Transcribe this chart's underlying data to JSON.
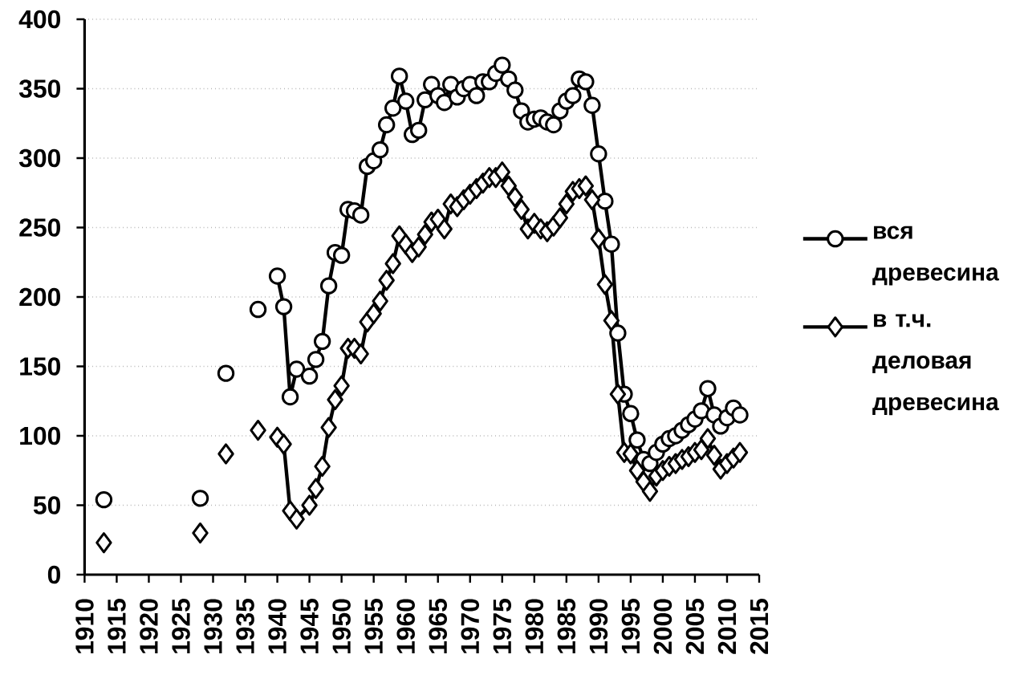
{
  "chart_data": {
    "type": "line",
    "x": [
      1913,
      1914,
      1928,
      1929,
      1932,
      1933,
      1937,
      1938,
      1940,
      1941,
      1942,
      1943,
      1945,
      1946,
      1947,
      1948,
      1949,
      1950,
      1951,
      1952,
      1953,
      1954,
      1955,
      1956,
      1957,
      1958,
      1959,
      1960,
      1961,
      1962,
      1963,
      1964,
      1965,
      1966,
      1967,
      1968,
      1969,
      1970,
      1971,
      1972,
      1973,
      1974,
      1975,
      1976,
      1977,
      1978,
      1979,
      1980,
      1981,
      1982,
      1983,
      1984,
      1985,
      1986,
      1987,
      1988,
      1989,
      1990,
      1991,
      1992,
      1993,
      1994,
      1995,
      1996,
      1997,
      1998,
      1999,
      2000,
      2001,
      2002,
      2003,
      2004,
      2005,
      2006,
      2007,
      2008,
      2009,
      2010,
      2011,
      2012
    ],
    "series": [
      {
        "name": "вся древесина",
        "color": "#000000",
        "marker": "circle",
        "values": [
          54,
          null,
          55,
          null,
          145,
          null,
          191,
          null,
          215,
          193,
          128,
          148,
          143,
          155,
          168,
          208,
          232,
          230,
          263,
          262,
          259,
          294,
          298,
          306,
          324,
          336,
          359,
          341,
          317,
          320,
          342,
          353,
          345,
          340,
          353,
          344,
          350,
          353,
          345,
          355,
          355,
          361,
          367,
          357,
          349,
          334,
          326,
          328,
          329,
          326,
          324,
          334,
          341,
          345,
          357,
          355,
          338,
          303,
          269,
          238,
          174,
          130,
          116,
          97,
          83,
          80,
          88,
          94,
          98,
          100,
          104,
          108,
          112,
          118,
          134,
          115,
          107,
          113,
          120,
          115
        ]
      },
      {
        "name": "в т.ч. деловая древесина",
        "color": "#000000",
        "marker": "diamond",
        "values": [
          23,
          null,
          30,
          null,
          87,
          null,
          104,
          null,
          99,
          94,
          46,
          40,
          50,
          62,
          78,
          106,
          126,
          136,
          163,
          163,
          159,
          182,
          188,
          197,
          212,
          224,
          244,
          238,
          232,
          236,
          245,
          254,
          256,
          249,
          267,
          265,
          270,
          274,
          278,
          282,
          286,
          286,
          290,
          280,
          272,
          263,
          249,
          253,
          249,
          247,
          251,
          257,
          267,
          276,
          278,
          280,
          270,
          242,
          209,
          183,
          130,
          88,
          87,
          75,
          67,
          60,
          71,
          75,
          78,
          80,
          83,
          85,
          88,
          90,
          98,
          86,
          76,
          80,
          84,
          88
        ]
      }
    ],
    "xlim": [
      1910,
      2015
    ],
    "xticks": [
      1910,
      1915,
      1920,
      1925,
      1930,
      1935,
      1940,
      1945,
      1950,
      1955,
      1960,
      1965,
      1970,
      1975,
      1980,
      1985,
      1990,
      1995,
      2000,
      2005,
      2010,
      2015
    ],
    "ylim": [
      0,
      400
    ],
    "yticks": [
      0,
      50,
      100,
      150,
      200,
      250,
      300,
      350,
      400
    ],
    "grid": "y",
    "legend": "right",
    "line_style": "solid"
  }
}
